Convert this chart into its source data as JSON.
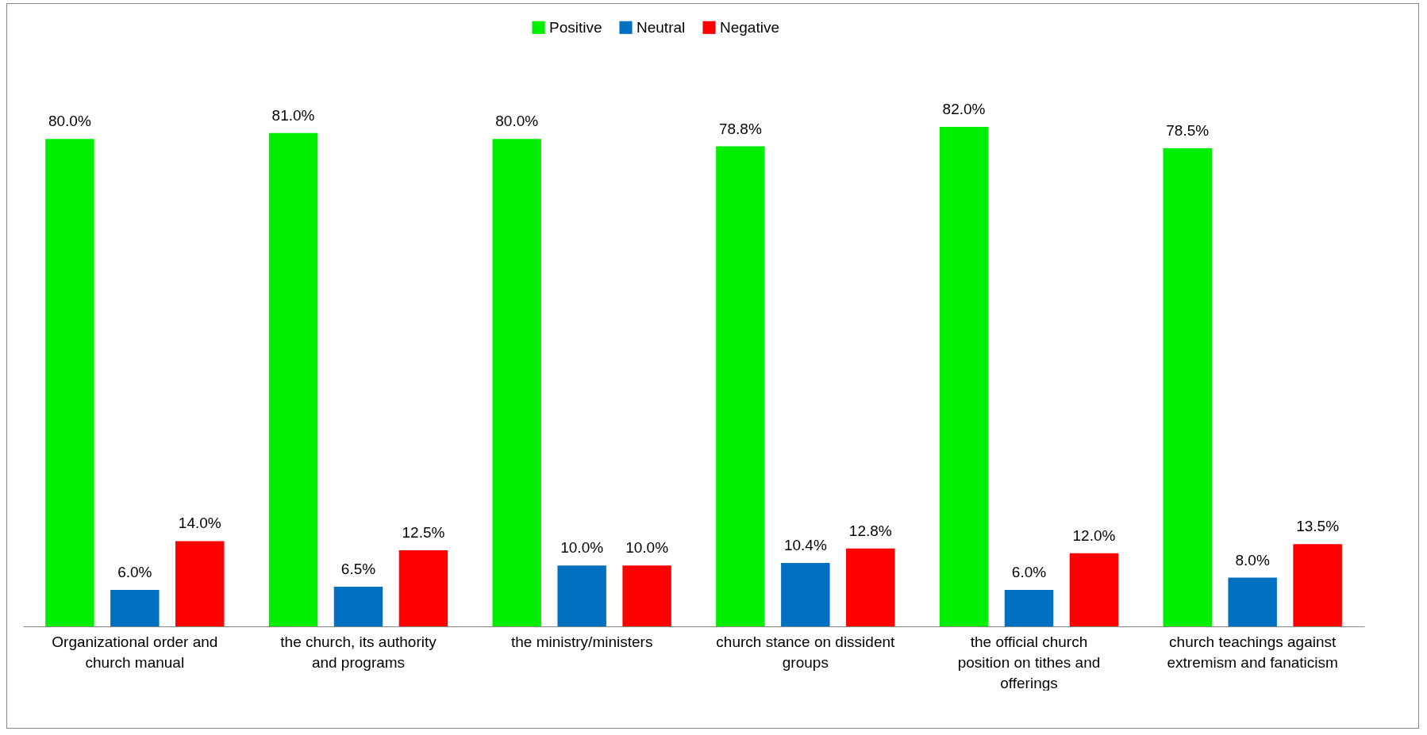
{
  "chart_data": {
    "type": "bar",
    "categories": [
      "Organizational order and church manual",
      "the church, its authority and programs",
      "the ministry/ministers",
      "church stance on dissident groups",
      "the official church position on tithes and offerings",
      "church teachings against extremism and fanaticism"
    ],
    "series": [
      {
        "name": "Positive",
        "color": "#00ee00",
        "values": [
          80.0,
          81.0,
          80.0,
          78.8,
          82.0,
          78.5
        ],
        "value_labels": [
          "80.0%",
          "81.0%",
          "80.0%",
          "78.8%",
          "82.0%",
          "78.5%"
        ]
      },
      {
        "name": "Neutral",
        "color": "#0070c0",
        "values": [
          6.0,
          6.5,
          10.0,
          10.4,
          6.0,
          8.0
        ],
        "value_labels": [
          "6.0%",
          "6.5%",
          "10.0%",
          "10.4%",
          "6.0%",
          "8.0%"
        ]
      },
      {
        "name": "Negative",
        "color": "#ff0000",
        "values": [
          14.0,
          12.5,
          10.0,
          12.8,
          12.0,
          13.5
        ],
        "value_labels": [
          "14.0%",
          "12.5%",
          "10.0%",
          "12.8%",
          "12.0%",
          "13.5%"
        ]
      }
    ],
    "legend": "top",
    "tick_labels": "x"
  }
}
